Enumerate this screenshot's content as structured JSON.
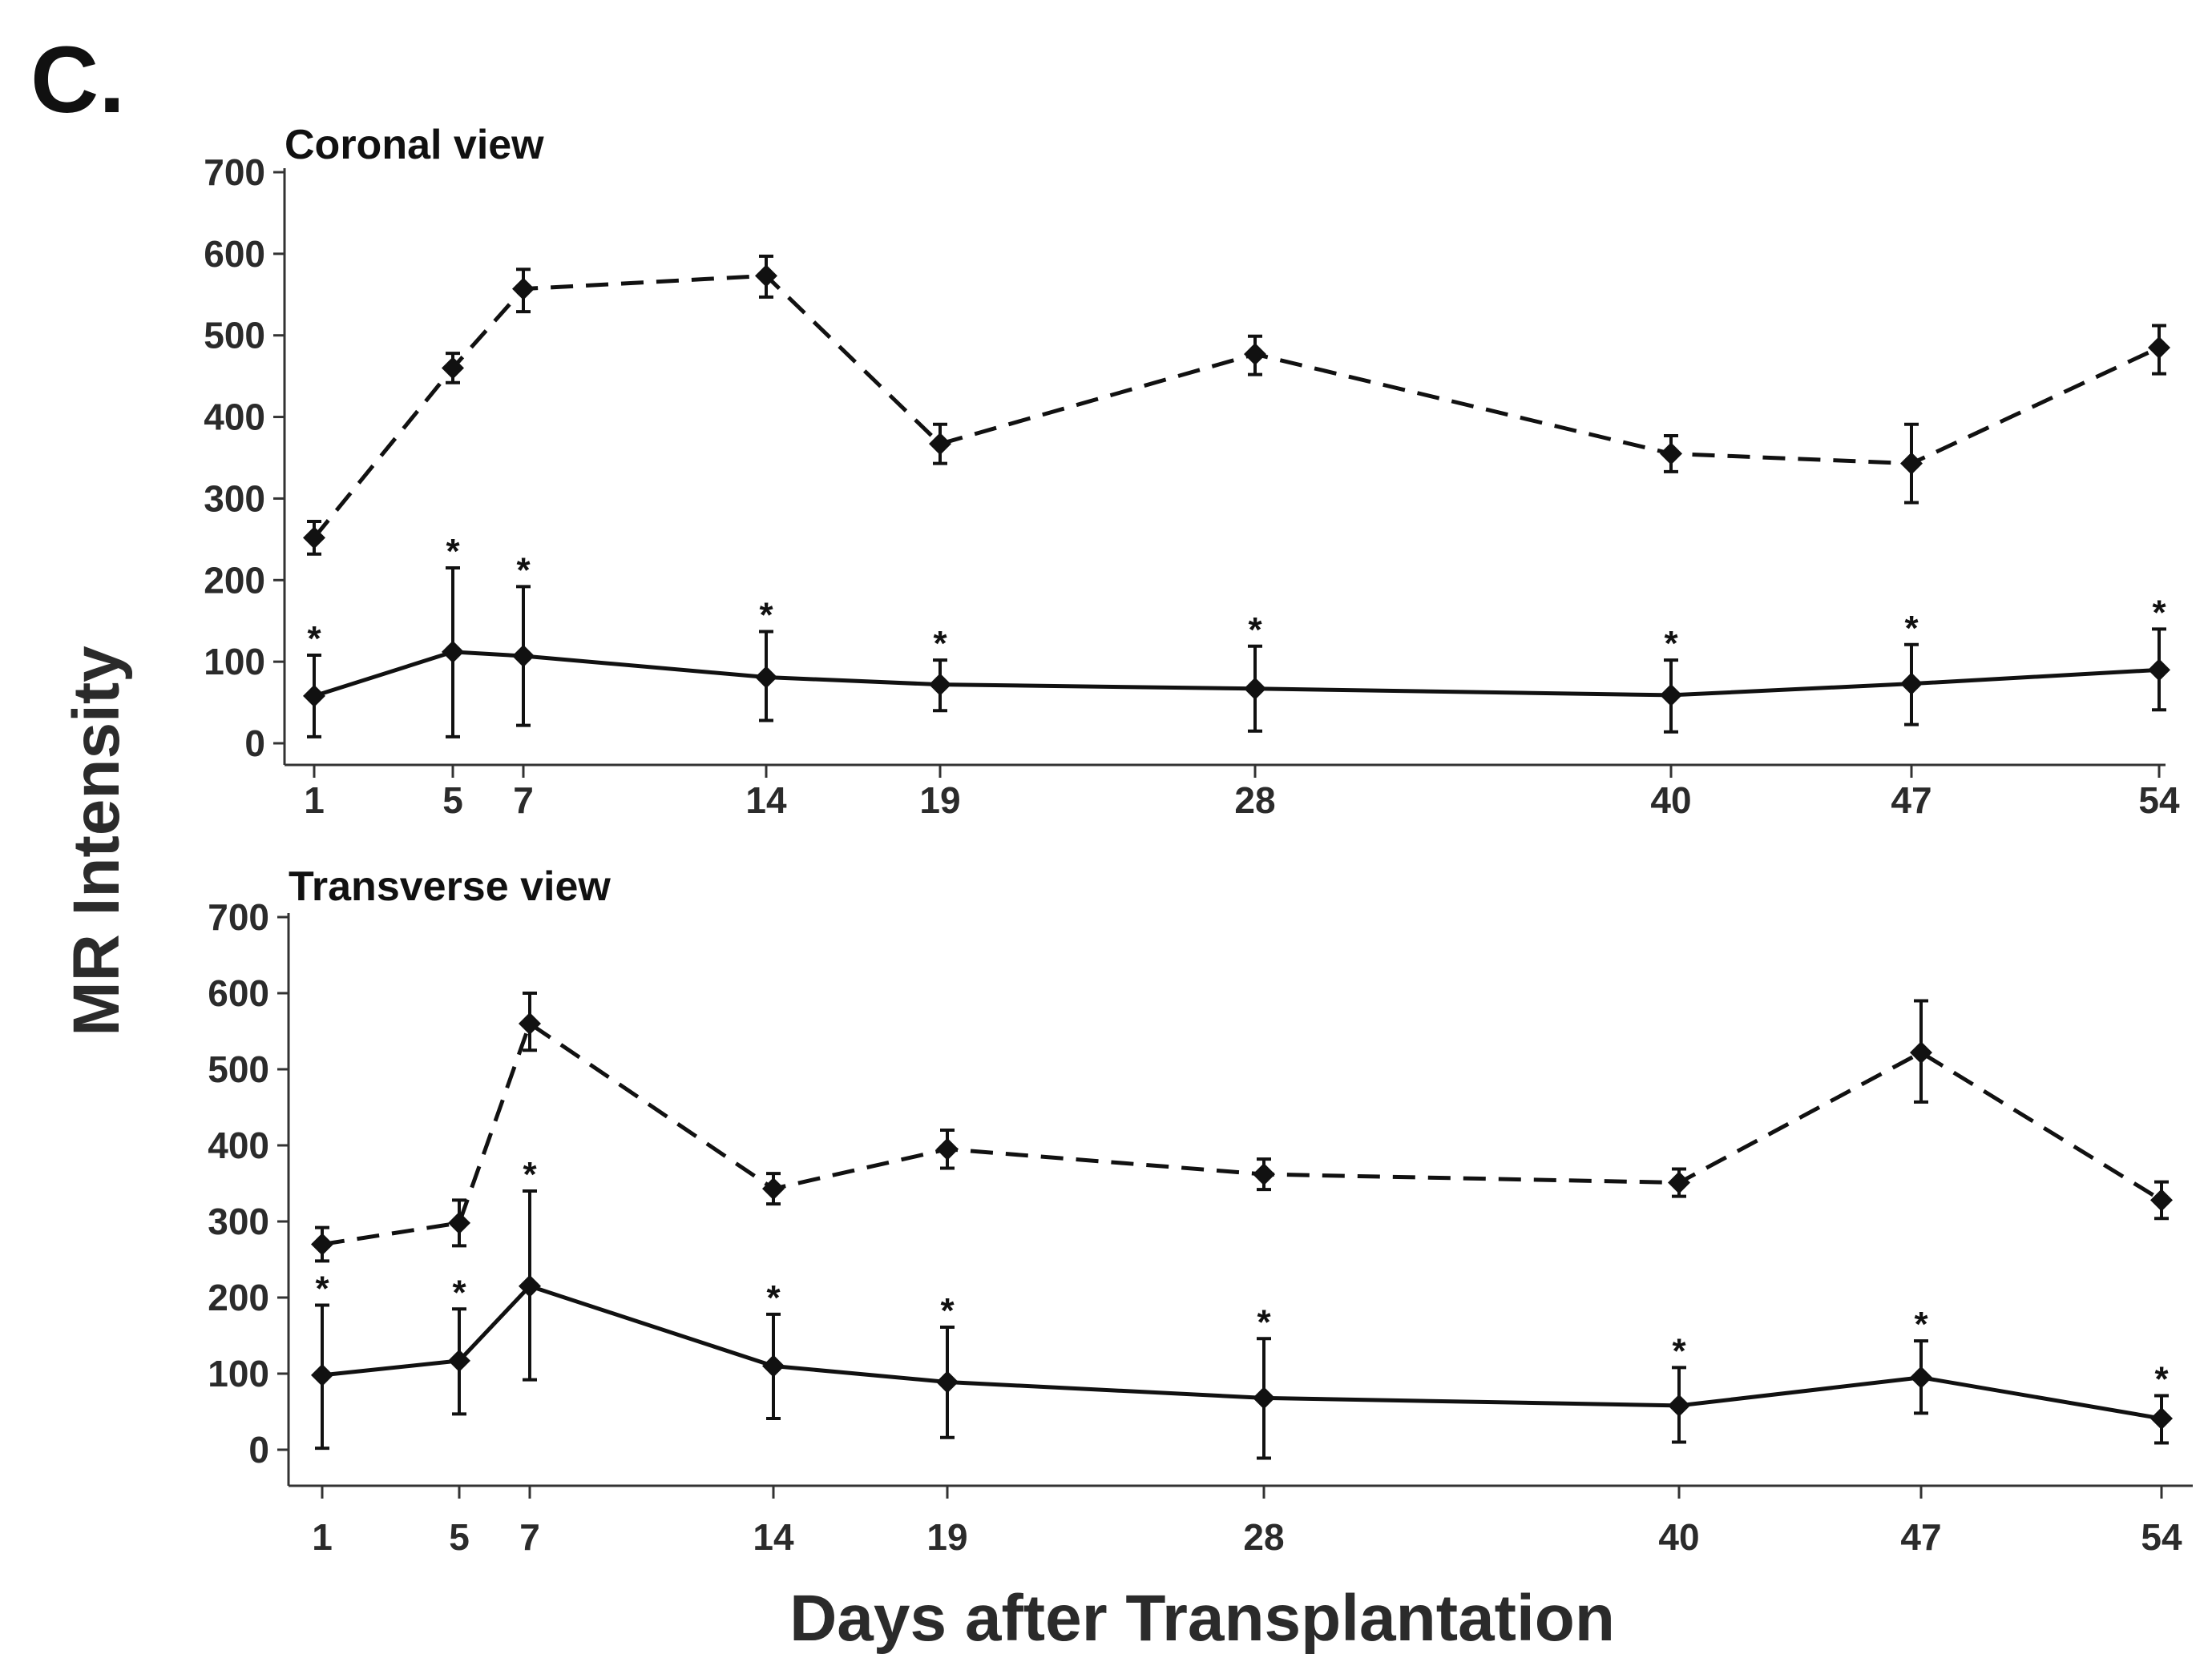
{
  "figure": {
    "panel_label": "C.",
    "ylabel": "MR Intensity",
    "xlabel": "Days after Transplantation"
  },
  "colors": {
    "ink": "#111111",
    "axis": "#333333",
    "tick_text": "#2b2b2b",
    "background": "#ffffff"
  },
  "chart_data": [
    {
      "type": "line",
      "title": "Coronal view",
      "xlabel": "Days after Transplantation",
      "ylabel": "MR Intensity",
      "x": [
        1,
        5,
        7,
        14,
        19,
        28,
        40,
        47,
        54
      ],
      "x_tick_labels": [
        "1",
        "5",
        "7",
        "14",
        "19",
        "28",
        "40",
        "47",
        "54"
      ],
      "ylim": [
        0,
        700
      ],
      "y_ticks": [
        0,
        100,
        200,
        300,
        400,
        500,
        600,
        700
      ],
      "y_tick_labels": [
        "0",
        "100",
        "200",
        "300",
        "400",
        "500",
        "600",
        "700"
      ],
      "grid": false,
      "series": [
        {
          "name": "dashed",
          "line_style": "dashed",
          "values": [
            252,
            460,
            557,
            573,
            367,
            477,
            355,
            343,
            485
          ],
          "error_low": [
            20,
            18,
            28,
            26,
            24,
            25,
            22,
            48,
            32
          ],
          "error_high": [
            20,
            18,
            24,
            24,
            24,
            22,
            22,
            48,
            27
          ],
          "significance": [
            "",
            "",
            "",
            "",
            "",
            "",
            "",
            "",
            ""
          ]
        },
        {
          "name": "solid",
          "line_style": "solid",
          "values": [
            58,
            112,
            107,
            81,
            72,
            67,
            59,
            73,
            90
          ],
          "error_low": [
            50,
            104,
            85,
            53,
            32,
            52,
            45,
            50,
            49
          ],
          "error_high": [
            50,
            103,
            85,
            56,
            30,
            52,
            43,
            48,
            50
          ],
          "significance": [
            "*",
            "*",
            "*",
            "*",
            "*",
            "*",
            "*",
            "*",
            "*"
          ]
        }
      ]
    },
    {
      "type": "line",
      "title": "Transverse view",
      "xlabel": "Days after Transplantation",
      "ylabel": "MR Intensity",
      "x": [
        1,
        5,
        7,
        14,
        19,
        28,
        40,
        47,
        54
      ],
      "x_tick_labels": [
        "1",
        "5",
        "7",
        "14",
        "19",
        "28",
        "40",
        "47",
        "54"
      ],
      "ylim": [
        0,
        700
      ],
      "y_ticks": [
        0,
        100,
        200,
        300,
        400,
        500,
        600,
        700
      ],
      "y_tick_labels": [
        "0",
        "100",
        "200",
        "300",
        "400",
        "500",
        "600",
        "700"
      ],
      "grid": false,
      "series": [
        {
          "name": "dashed",
          "line_style": "dashed",
          "values": [
            270,
            298,
            560,
            343,
            395,
            362,
            351,
            522,
            328
          ],
          "error_low": [
            22,
            30,
            35,
            20,
            25,
            20,
            18,
            65,
            24
          ],
          "error_high": [
            22,
            30,
            40,
            20,
            25,
            20,
            18,
            68,
            24
          ],
          "significance": [
            "",
            "",
            "",
            "",
            "",
            "",
            "",
            "",
            ""
          ]
        },
        {
          "name": "solid",
          "line_style": "solid",
          "values": [
            98,
            117,
            215,
            110,
            89,
            68,
            58,
            95,
            41
          ],
          "error_low": [
            96,
            70,
            123,
            69,
            73,
            79,
            48,
            47,
            32
          ],
          "error_high": [
            92,
            68,
            125,
            68,
            72,
            78,
            50,
            48,
            30
          ],
          "significance": [
            "*",
            "*",
            "*",
            "*",
            "*",
            "*",
            "*",
            "*",
            "*"
          ]
        }
      ]
    }
  ]
}
